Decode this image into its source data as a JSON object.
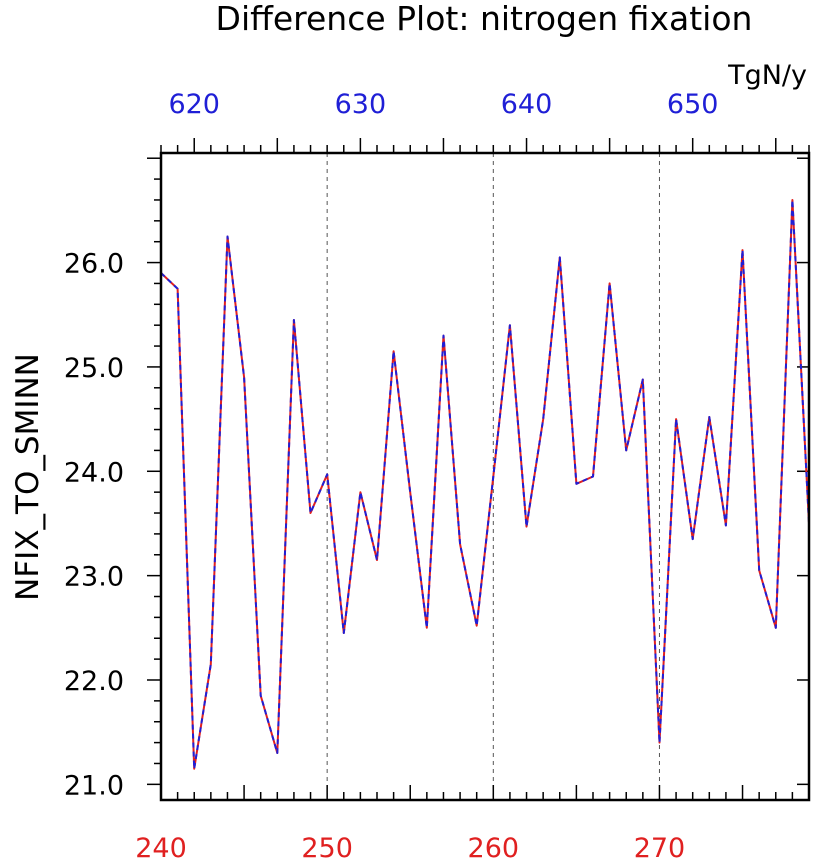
{
  "chart_data": {
    "type": "line",
    "title": "Difference Plot: nitrogen fixation",
    "units": "TgN/y",
    "ylabel": "NFIX_TO_SMINN",
    "xlim_bottom": [
      240,
      279
    ],
    "xlim_top": [
      618,
      657
    ],
    "ylim": [
      20.85,
      27.05
    ],
    "x_ticks_bottom": [
      "240",
      "250",
      "260",
      "270"
    ],
    "x_ticks_top": [
      "620",
      "630",
      "640",
      "650"
    ],
    "y_ticks": [
      "21.0",
      "22.0",
      "23.0",
      "24.0",
      "25.0",
      "26.0"
    ],
    "grid": "dashed vertical lines at labeled x ticks",
    "colors": {
      "top_axis": "#1f1fd6",
      "bottom_axis": "#e02020",
      "series_a": "#e02020",
      "series_b": "#1f1fd6"
    },
    "x": [
      240,
      241,
      242,
      243,
      244,
      245,
      246,
      247,
      248,
      249,
      250,
      251,
      252,
      253,
      254,
      255,
      256,
      257,
      258,
      259,
      260,
      261,
      262,
      263,
      264,
      265,
      266,
      267,
      268,
      269,
      270,
      271,
      272,
      273,
      274,
      275,
      276,
      277,
      278,
      279
    ],
    "series": [
      {
        "values": [
          25.9,
          25.75,
          21.15,
          22.15,
          26.25,
          24.9,
          21.85,
          21.3,
          25.45,
          23.6,
          23.97,
          22.45,
          23.8,
          23.15,
          25.15,
          23.8,
          22.5,
          25.3,
          23.3,
          22.52,
          23.95,
          25.4,
          23.47,
          24.5,
          26.05,
          23.88,
          23.95,
          25.8,
          24.2,
          24.88,
          21.4,
          24.5,
          23.35,
          24.52,
          23.48,
          26.12,
          23.05,
          22.5,
          26.6,
          23.5
        ]
      },
      {
        "values": [
          25.9,
          25.75,
          21.15,
          22.15,
          26.25,
          24.9,
          21.85,
          21.3,
          25.45,
          23.6,
          23.97,
          22.45,
          23.8,
          23.15,
          25.15,
          23.8,
          22.5,
          25.3,
          23.3,
          22.52,
          23.95,
          25.4,
          23.47,
          24.5,
          26.05,
          23.88,
          23.95,
          25.8,
          24.2,
          24.88,
          21.4,
          24.5,
          23.35,
          24.52,
          23.48,
          26.12,
          23.05,
          22.5,
          26.6,
          23.5
        ]
      }
    ]
  }
}
